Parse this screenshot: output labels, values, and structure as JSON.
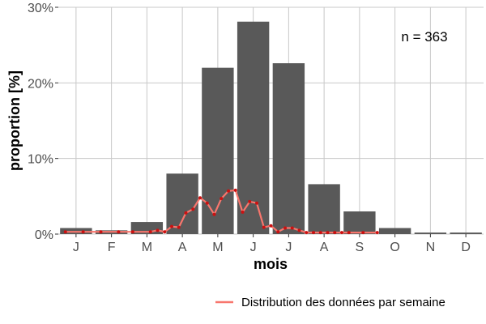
{
  "chart_data": {
    "type": "bar",
    "categories": [
      "J",
      "F",
      "M",
      "A",
      "M",
      "J",
      "J",
      "A",
      "S",
      "O",
      "N",
      "D"
    ],
    "values": [
      0.8,
      0.5,
      1.6,
      8.0,
      22.0,
      28.1,
      22.6,
      6.6,
      3.0,
      0.8,
      0.2,
      0.2
    ],
    "xlabel": "mois",
    "ylabel": "proportion [%]",
    "ylim": [
      0,
      30
    ],
    "yticks": [
      0,
      10,
      20,
      30
    ],
    "ytick_labels": [
      "0%",
      "10%",
      "20%",
      "30%"
    ],
    "annotation": "n = 363",
    "grid": true,
    "legend_position": "bottom-right",
    "bar_color": "#595959",
    "weekly_series": {
      "name": "Distribution des données par semaine",
      "color": "#f8766d",
      "x": [
        0.2,
        0.7,
        1.2,
        1.7,
        2.1,
        2.6,
        2.8,
        3.0,
        3.2,
        3.4,
        3.6,
        3.8,
        4.0,
        4.2,
        4.4,
        4.6,
        4.8,
        5.0,
        5.2,
        5.4,
        5.6,
        5.8,
        6.0,
        6.2,
        6.4,
        6.6,
        6.8,
        7.0,
        7.2,
        7.4,
        7.6,
        7.8,
        8.0,
        8.2,
        8.6,
        9.0
      ],
      "y": [
        0.3,
        0.3,
        0.3,
        0.3,
        0.3,
        0.3,
        0.5,
        0.3,
        1.0,
        0.9,
        2.8,
        3.3,
        4.8,
        4.1,
        2.6,
        4.7,
        5.7,
        5.8,
        2.9,
        4.3,
        4.1,
        0.9,
        1.1,
        0.3,
        0.8,
        0.8,
        0.5,
        0.2,
        0.2,
        0.2,
        0.2,
        0.2,
        0.2,
        0.2,
        0.2,
        0.2
      ]
    }
  }
}
